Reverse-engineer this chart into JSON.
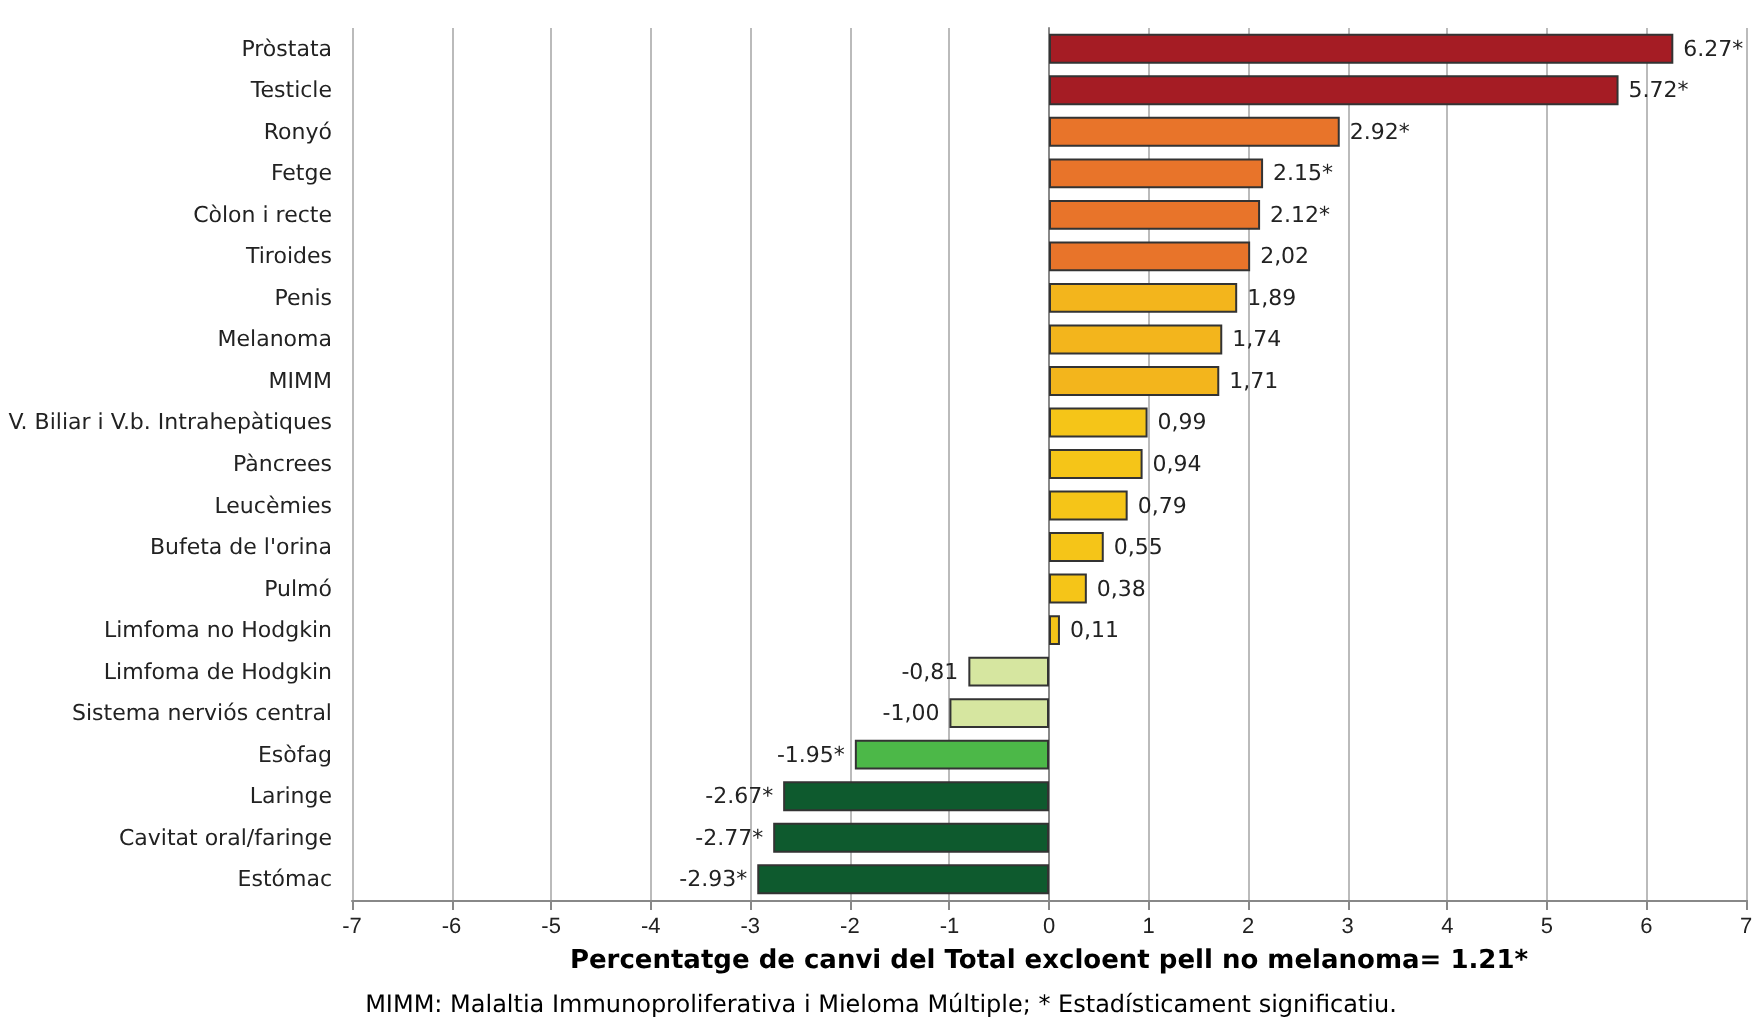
{
  "chart_data": {
    "type": "bar",
    "orientation": "horizontal",
    "xlabel": "Percentatge de canvi del Total excloent pell no melanoma= 1.21*",
    "annotations": [
      "MIMM: Malaltia Immunoproliferativa i Mieloma Múltiple; * Estadísticament significatiu."
    ],
    "categories": [
      "Pròstata",
      "Testicle",
      "Ronyó",
      "Fetge",
      "Còlon i recte",
      "Tiroides",
      "Penis",
      "Melanoma",
      "MIMM",
      "V. Biliar i V.b. Intrahepàtiques",
      "Pàncrees",
      "Leucèmies",
      "Bufeta de l'orina",
      "Pulmó",
      "Limfoma no Hodgkin",
      "Limfoma de Hodgkin",
      "Sistema nerviós central",
      "Esòfag",
      "Laringe",
      "Cavitat oral/faringe",
      "Estómac"
    ],
    "values": [
      6.27,
      5.72,
      2.92,
      2.15,
      2.12,
      2.02,
      1.89,
      1.74,
      1.71,
      0.99,
      0.94,
      0.79,
      0.55,
      0.38,
      0.11,
      -0.81,
      -1.0,
      -1.95,
      -2.67,
      -2.77,
      -2.93
    ],
    "value_labels": [
      "6.27*",
      "5.72*",
      "2.92*",
      "2.15*",
      "2.12*",
      "2,02",
      "1,89",
      "1,74",
      "1,71",
      "0,99",
      "0,94",
      "0,79",
      "0,55",
      "0,38",
      "0,11",
      "-0,81",
      "-1,00",
      "-1.95*",
      "-2.67*",
      "-2.77*",
      "-2.93*"
    ],
    "colors": [
      "#a51c24",
      "#a51c24",
      "#e8742a",
      "#e8742a",
      "#e8742a",
      "#e8742a",
      "#f3b51c",
      "#f3b51c",
      "#f3b51c",
      "#f5c518",
      "#f5c518",
      "#f5c518",
      "#f5c518",
      "#f5c518",
      "#f5c518",
      "#d6e6a0",
      "#d6e6a0",
      "#4cb848",
      "#0e5a2e",
      "#0e5a2e",
      "#0e5a2e"
    ],
    "xlim": [
      -7,
      7
    ],
    "xticks": [
      -7,
      -6,
      -5,
      -4,
      -3,
      -2,
      -1,
      0,
      1,
      2,
      3,
      4,
      5,
      6,
      7
    ],
    "grid": "x"
  }
}
